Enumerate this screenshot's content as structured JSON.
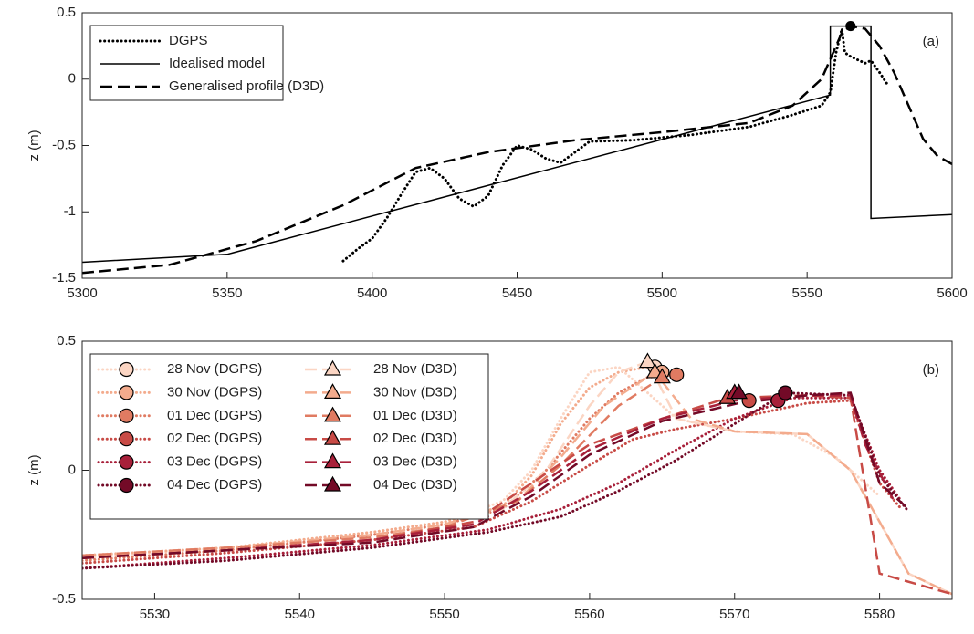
{
  "chart_data": [
    {
      "type": "line",
      "ylabel": "z (m)",
      "annotation": "(a)",
      "legend": "upper left",
      "xlim": [
        5300,
        5600
      ],
      "xticks": [
        5300,
        5350,
        5400,
        5450,
        5500,
        5550,
        5600
      ],
      "ylim": [
        -1.5,
        0.5
      ],
      "yticks": [
        -1.5,
        -1,
        -0.5,
        0,
        0.5
      ],
      "series": [
        {
          "name": "DGPS",
          "color": "#000000",
          "style": "dotted",
          "x": [
            5390,
            5395,
            5400,
            5405,
            5410,
            5415,
            5420,
            5425,
            5430,
            5435,
            5440,
            5445,
            5450,
            5455,
            5460,
            5465,
            5470,
            5475,
            5490,
            5510,
            5530,
            5545,
            5555,
            5558,
            5560,
            5562,
            5563,
            5565,
            5570,
            5572,
            5575,
            5578
          ],
          "values": [
            -1.37,
            -1.28,
            -1.2,
            -1.05,
            -0.87,
            -0.7,
            -0.67,
            -0.75,
            -0.9,
            -0.96,
            -0.88,
            -0.65,
            -0.5,
            -0.53,
            -0.6,
            -0.63,
            -0.55,
            -0.47,
            -0.46,
            -0.42,
            -0.36,
            -0.27,
            -0.2,
            -0.1,
            0.2,
            0.38,
            0.2,
            0.17,
            0.12,
            0.14,
            0.05,
            -0.05
          ]
        },
        {
          "name": "Idealised model",
          "color": "#000000",
          "style": "solid",
          "x": [
            5300,
            5350,
            5558,
            5558,
            5572,
            5572,
            5600
          ],
          "values": [
            -1.38,
            -1.32,
            -0.12,
            0.4,
            0.4,
            -1.05,
            -1.02
          ]
        },
        {
          "name": "Generalised profile (D3D)",
          "color": "#000000",
          "style": "dashed",
          "x": [
            5300,
            5330,
            5360,
            5390,
            5415,
            5440,
            5470,
            5500,
            5530,
            5545,
            5555,
            5562,
            5565,
            5570,
            5575,
            5580,
            5585,
            5590,
            5595,
            5600
          ],
          "values": [
            -1.46,
            -1.4,
            -1.22,
            -0.95,
            -0.67,
            -0.55,
            -0.46,
            -0.4,
            -0.33,
            -0.2,
            0.0,
            0.35,
            0.4,
            0.38,
            0.25,
            0.05,
            -0.2,
            -0.45,
            -0.58,
            -0.64
          ]
        },
        {
          "color": "#000000",
          "marker": "circle",
          "x": [
            5565
          ],
          "values": [
            0.4
          ]
        }
      ]
    },
    {
      "type": "line",
      "ylabel": "z (m)",
      "annotation": "(b)",
      "legend": "upper left",
      "xlim": [
        5525,
        5585
      ],
      "xticks": [
        5530,
        5540,
        5550,
        5560,
        5570,
        5580
      ],
      "ylim": [
        -0.5,
        0.5
      ],
      "yticks": [
        -0.5,
        0,
        0.5
      ],
      "series": [
        {
          "name": "28 Nov (DGPS)",
          "color": "#fbd5c3",
          "style": "dotted",
          "marker": "circle",
          "marker_x": 5564.5,
          "marker_y": 0.4,
          "x": [
            5525,
            5535,
            5545,
            5550,
            5554,
            5556,
            5558,
            5560,
            5562,
            5564,
            5566,
            5570,
            5574,
            5577,
            5580
          ],
          "values": [
            -0.34,
            -0.3,
            -0.24,
            -0.2,
            -0.12,
            0.0,
            0.2,
            0.38,
            0.4,
            0.3,
            0.2,
            0.15,
            0.14,
            0.05,
            -0.1
          ]
        },
        {
          "name": "30 Nov (DGPS)",
          "color": "#f3ab8d",
          "style": "dotted",
          "marker": "circle",
          "marker_x": 5565,
          "marker_y": 0.38,
          "x": [
            5525,
            5535,
            5545,
            5550,
            5554,
            5556,
            5558,
            5560,
            5562,
            5564,
            5566
          ],
          "values": [
            -0.33,
            -0.3,
            -0.24,
            -0.2,
            -0.14,
            -0.02,
            0.18,
            0.32,
            0.38,
            0.4,
            0.38
          ]
        },
        {
          "name": "01 Dec (DGPS)",
          "color": "#e07b62",
          "style": "dotted",
          "marker": "circle",
          "marker_x": 5566,
          "marker_y": 0.37,
          "x": [
            5525,
            5535,
            5545,
            5550,
            5554,
            5557,
            5560,
            5562,
            5564,
            5566
          ],
          "values": [
            -0.35,
            -0.31,
            -0.25,
            -0.21,
            -0.15,
            0.0,
            0.2,
            0.3,
            0.36,
            0.37
          ]
        },
        {
          "name": "02 Dec (DGPS)",
          "color": "#c84b46",
          "style": "dotted",
          "marker": "circle",
          "marker_x": 5571,
          "marker_y": 0.27,
          "x": [
            5525,
            5535,
            5545,
            5552,
            5556,
            5560,
            5563,
            5566,
            5570,
            5575,
            5578,
            5580,
            5581.5
          ],
          "values": [
            -0.36,
            -0.32,
            -0.27,
            -0.22,
            -0.12,
            0.02,
            0.12,
            0.16,
            0.2,
            0.26,
            0.27,
            -0.05,
            -0.15
          ]
        },
        {
          "name": "03 Dec (DGPS)",
          "color": "#a8203a",
          "style": "dotted",
          "marker": "circle",
          "marker_x": 5573,
          "marker_y": 0.27,
          "x": [
            5525,
            5535,
            5545,
            5553,
            5558,
            5562,
            5566,
            5570,
            5574,
            5578,
            5580,
            5581.5
          ],
          "values": [
            -0.38,
            -0.34,
            -0.29,
            -0.23,
            -0.15,
            -0.05,
            0.08,
            0.2,
            0.28,
            0.28,
            0.0,
            -0.12
          ]
        },
        {
          "name": "04 Dec (DGPS)",
          "color": "#730a27",
          "style": "dotted",
          "marker": "circle",
          "marker_x": 5573.5,
          "marker_y": 0.3,
          "x": [
            5525,
            5535,
            5545,
            5553,
            5558,
            5562,
            5566,
            5570,
            5573.5,
            5578,
            5580,
            5582
          ],
          "values": [
            -0.38,
            -0.35,
            -0.3,
            -0.24,
            -0.18,
            -0.08,
            0.04,
            0.18,
            0.3,
            0.29,
            -0.02,
            -0.16
          ]
        },
        {
          "name": "28 Nov (D3D)",
          "color": "#fbd5c3",
          "style": "dashed",
          "marker": "triangle",
          "marker_x": 5564,
          "marker_y": 0.42,
          "x": [
            5525,
            5535,
            5545,
            5550,
            5554,
            5557,
            5560,
            5562,
            5564,
            5566,
            5570,
            5575,
            5578,
            5580,
            5582,
            5585
          ],
          "values": [
            -0.33,
            -0.3,
            -0.25,
            -0.21,
            -0.15,
            0.0,
            0.25,
            0.38,
            0.42,
            0.2,
            0.15,
            0.14,
            0.0,
            -0.2,
            -0.4,
            -0.48
          ]
        },
        {
          "name": "30 Nov (D3D)",
          "color": "#f3ab8d",
          "style": "dashed",
          "marker": "triangle",
          "marker_x": 5564.5,
          "marker_y": 0.38,
          "x": [
            5525,
            5535,
            5545,
            5550,
            5555,
            5558,
            5561,
            5564.5,
            5567,
            5570,
            5575,
            5578,
            5580,
            5582,
            5585
          ],
          "values": [
            -0.33,
            -0.3,
            -0.25,
            -0.21,
            -0.12,
            0.05,
            0.25,
            0.38,
            0.2,
            0.15,
            0.14,
            0.0,
            -0.2,
            -0.4,
            -0.48
          ]
        },
        {
          "name": "01 Dec (D3D)",
          "color": "#e07b62",
          "style": "dashed",
          "marker": "triangle",
          "marker_x": 5565,
          "marker_y": 0.36,
          "x": [
            5525,
            5535,
            5545,
            5550,
            5555,
            5558,
            5562,
            5565
          ],
          "values": [
            -0.33,
            -0.3,
            -0.26,
            -0.22,
            -0.12,
            0.02,
            0.25,
            0.36
          ]
        },
        {
          "name": "02 Dec (D3D)",
          "color": "#c84b46",
          "style": "dashed",
          "marker": "triangle",
          "marker_x": 5569.5,
          "marker_y": 0.28,
          "x": [
            5525,
            5535,
            5545,
            5552,
            5556,
            5560,
            5565,
            5569.5,
            5575,
            5578,
            5580,
            5585
          ],
          "values": [
            -0.34,
            -0.31,
            -0.27,
            -0.2,
            -0.05,
            0.1,
            0.2,
            0.28,
            0.29,
            0.28,
            -0.4,
            -0.48
          ]
        },
        {
          "name": "03 Dec (D3D)",
          "color": "#a8203a",
          "style": "dashed",
          "marker": "triangle",
          "marker_x": 5570,
          "marker_y": 0.3,
          "x": [
            5525,
            5535,
            5545,
            5552,
            5556,
            5560,
            5565,
            5570,
            5575,
            5578,
            5579,
            5581
          ],
          "values": [
            -0.34,
            -0.31,
            -0.27,
            -0.21,
            -0.08,
            0.08,
            0.2,
            0.27,
            0.29,
            0.29,
            0.1,
            -0.12
          ]
        },
        {
          "name": "04 Dec (D3D)",
          "color": "#730a27",
          "style": "dashed",
          "marker": "triangle",
          "marker_x": 5570.3,
          "marker_y": 0.3,
          "x": [
            5525,
            5535,
            5545,
            5552,
            5556,
            5560,
            5565,
            5570.3,
            5575,
            5578,
            5580,
            5582
          ],
          "values": [
            -0.34,
            -0.31,
            -0.28,
            -0.22,
            -0.1,
            0.06,
            0.19,
            0.26,
            0.29,
            0.3,
            -0.05,
            -0.15
          ]
        }
      ]
    }
  ]
}
